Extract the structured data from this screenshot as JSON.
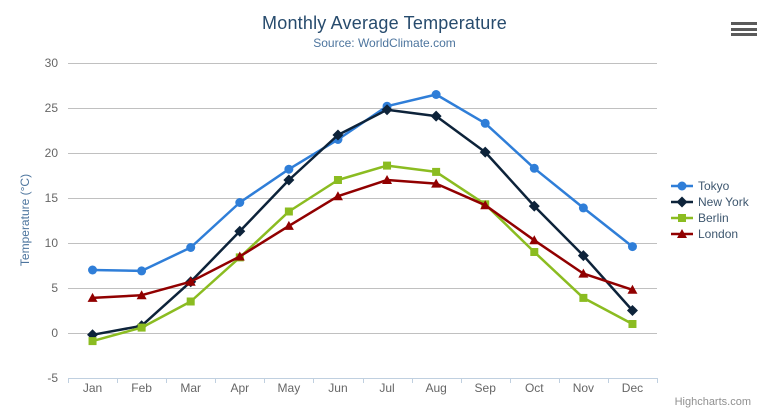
{
  "chart_data": {
    "type": "line",
    "title": "Monthly Average Temperature",
    "subtitle": "Source: WorldClimate.com",
    "xlabel": "",
    "ylabel": "Temperature (°C)",
    "categories": [
      "Jan",
      "Feb",
      "Mar",
      "Apr",
      "May",
      "Jun",
      "Jul",
      "Aug",
      "Sep",
      "Oct",
      "Nov",
      "Dec"
    ],
    "series": [
      {
        "name": "Tokyo",
        "color": "#2f7ed8",
        "marker": "circle",
        "values": [
          7.0,
          6.9,
          9.5,
          14.5,
          18.2,
          21.5,
          25.2,
          26.5,
          23.3,
          18.3,
          13.9,
          9.6
        ]
      },
      {
        "name": "New York",
        "color": "#0d233a",
        "marker": "diamond",
        "values": [
          -0.2,
          0.8,
          5.7,
          11.3,
          17.0,
          22.0,
          24.8,
          24.1,
          20.1,
          14.1,
          8.6,
          2.5
        ]
      },
      {
        "name": "Berlin",
        "color": "#8bbc21",
        "marker": "square",
        "values": [
          -0.9,
          0.6,
          3.5,
          8.4,
          13.5,
          17.0,
          18.6,
          17.9,
          14.3,
          9.0,
          3.9,
          1.0
        ]
      },
      {
        "name": "London",
        "color": "#910000",
        "marker": "triangle",
        "values": [
          3.9,
          4.2,
          5.7,
          8.5,
          11.9,
          15.2,
          17.0,
          16.6,
          14.2,
          10.3,
          6.6,
          4.8
        ]
      }
    ],
    "ylim": [
      -5,
      30
    ],
    "yticks": [
      -5,
      0,
      5,
      10,
      15,
      20,
      25,
      30
    ],
    "grid": true,
    "legend_position": "right"
  },
  "credits": {
    "label": "Highcharts.com"
  },
  "export_menu": {
    "icon": "hamburger-menu-icon"
  },
  "colors": {
    "title": "#274b6d",
    "subtitle": "#4d759e",
    "axis_title": "#4d759e",
    "axis_labels": "#666666",
    "legend_text": "#3e576f",
    "gridline": "#c0c0c0",
    "axis_line": "#c0d0e0",
    "credits": "#909090",
    "menu_icon": "#5a5a5a",
    "background": "#ffffff"
  }
}
